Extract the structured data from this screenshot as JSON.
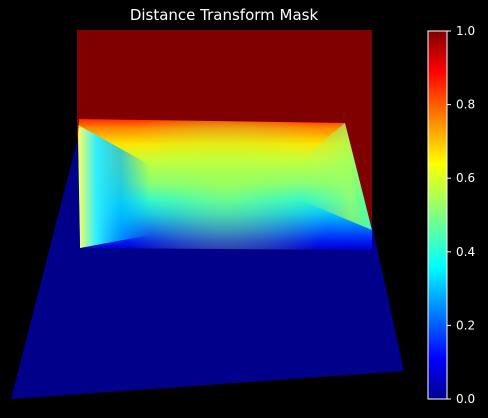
{
  "title": "Distance Transform Mask",
  "colorbar": {
    "colormap": "jet",
    "range": [
      0.0,
      1.0
    ],
    "ticks": [
      {
        "value": 1.0,
        "label": "1.0"
      },
      {
        "value": 0.8,
        "label": "0.8"
      },
      {
        "value": 0.6,
        "label": "0.6"
      },
      {
        "value": 0.4,
        "label": "0.4"
      },
      {
        "value": 0.2,
        "label": "0.2"
      },
      {
        "value": 0.0,
        "label": "0.0"
      }
    ]
  },
  "colors": {
    "background": "#000000",
    "axis_text": "#ffffff",
    "top_region": "#800000",
    "bottom_region": "#00008b"
  }
}
